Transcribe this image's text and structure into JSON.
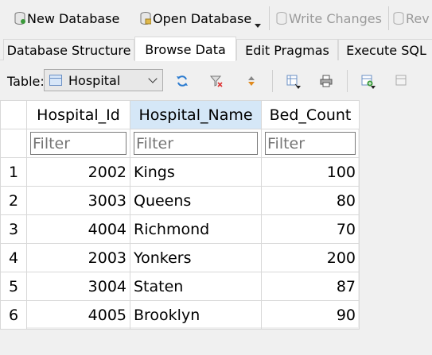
{
  "toolbar": {
    "new_database": "New Database",
    "open_database": "Open Database",
    "write_changes": "Write Changes",
    "revert": "Rev"
  },
  "tabs": [
    {
      "label": "Database Structure",
      "active": false
    },
    {
      "label": "Browse Data",
      "active": true
    },
    {
      "label": "Edit Pragmas",
      "active": false
    },
    {
      "label": "Execute SQL",
      "active": false
    }
  ],
  "table_selector": {
    "label": "Table:",
    "selected": "Hospital"
  },
  "grid": {
    "columns": [
      "Hospital_Id",
      "Hospital_Name",
      "Bed_Count"
    ],
    "filter_placeholder": "Filter",
    "rows": [
      {
        "n": "1",
        "id": "2002",
        "name": "Kings",
        "beds": "100"
      },
      {
        "n": "2",
        "id": "3003",
        "name": "Queens",
        "beds": "80"
      },
      {
        "n": "3",
        "id": "4004",
        "name": "Richmond",
        "beds": "70"
      },
      {
        "n": "4",
        "id": "2003",
        "name": "Yonkers",
        "beds": "200"
      },
      {
        "n": "5",
        "id": "3004",
        "name": "Staten",
        "beds": "87"
      },
      {
        "n": "6",
        "id": "4005",
        "name": "Brooklyn",
        "beds": "90"
      }
    ]
  },
  "colors": {
    "selected_header": "#d5e7f7",
    "refresh_icon": "#2b7bd0",
    "print_icon": "#555555"
  }
}
